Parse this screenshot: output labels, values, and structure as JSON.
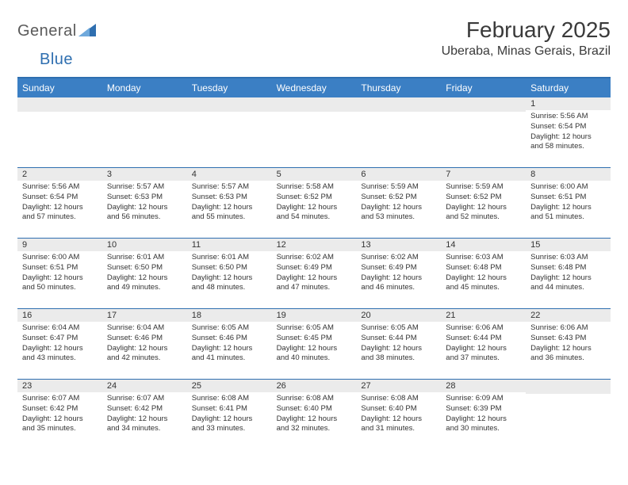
{
  "brand": {
    "word1": "General",
    "word2": "Blue"
  },
  "header": {
    "month_title": "February 2025",
    "location": "Uberaba, Minas Gerais, Brazil"
  },
  "colors": {
    "accent": "#3b7fc4",
    "rule": "#2f6fb0",
    "daynum_bg": "#ebebeb",
    "text": "#333333",
    "bg": "#ffffff"
  },
  "day_headers": [
    "Sunday",
    "Monday",
    "Tuesday",
    "Wednesday",
    "Thursday",
    "Friday",
    "Saturday"
  ],
  "weeks": [
    [
      {
        "n": "",
        "sr": "",
        "ss": "",
        "dl": ""
      },
      {
        "n": "",
        "sr": "",
        "ss": "",
        "dl": ""
      },
      {
        "n": "",
        "sr": "",
        "ss": "",
        "dl": ""
      },
      {
        "n": "",
        "sr": "",
        "ss": "",
        "dl": ""
      },
      {
        "n": "",
        "sr": "",
        "ss": "",
        "dl": ""
      },
      {
        "n": "",
        "sr": "",
        "ss": "",
        "dl": ""
      },
      {
        "n": "1",
        "sr": "Sunrise: 5:56 AM",
        "ss": "Sunset: 6:54 PM",
        "dl": "Daylight: 12 hours and 58 minutes."
      }
    ],
    [
      {
        "n": "2",
        "sr": "Sunrise: 5:56 AM",
        "ss": "Sunset: 6:54 PM",
        "dl": "Daylight: 12 hours and 57 minutes."
      },
      {
        "n": "3",
        "sr": "Sunrise: 5:57 AM",
        "ss": "Sunset: 6:53 PM",
        "dl": "Daylight: 12 hours and 56 minutes."
      },
      {
        "n": "4",
        "sr": "Sunrise: 5:57 AM",
        "ss": "Sunset: 6:53 PM",
        "dl": "Daylight: 12 hours and 55 minutes."
      },
      {
        "n": "5",
        "sr": "Sunrise: 5:58 AM",
        "ss": "Sunset: 6:52 PM",
        "dl": "Daylight: 12 hours and 54 minutes."
      },
      {
        "n": "6",
        "sr": "Sunrise: 5:59 AM",
        "ss": "Sunset: 6:52 PM",
        "dl": "Daylight: 12 hours and 53 minutes."
      },
      {
        "n": "7",
        "sr": "Sunrise: 5:59 AM",
        "ss": "Sunset: 6:52 PM",
        "dl": "Daylight: 12 hours and 52 minutes."
      },
      {
        "n": "8",
        "sr": "Sunrise: 6:00 AM",
        "ss": "Sunset: 6:51 PM",
        "dl": "Daylight: 12 hours and 51 minutes."
      }
    ],
    [
      {
        "n": "9",
        "sr": "Sunrise: 6:00 AM",
        "ss": "Sunset: 6:51 PM",
        "dl": "Daylight: 12 hours and 50 minutes."
      },
      {
        "n": "10",
        "sr": "Sunrise: 6:01 AM",
        "ss": "Sunset: 6:50 PM",
        "dl": "Daylight: 12 hours and 49 minutes."
      },
      {
        "n": "11",
        "sr": "Sunrise: 6:01 AM",
        "ss": "Sunset: 6:50 PM",
        "dl": "Daylight: 12 hours and 48 minutes."
      },
      {
        "n": "12",
        "sr": "Sunrise: 6:02 AM",
        "ss": "Sunset: 6:49 PM",
        "dl": "Daylight: 12 hours and 47 minutes."
      },
      {
        "n": "13",
        "sr": "Sunrise: 6:02 AM",
        "ss": "Sunset: 6:49 PM",
        "dl": "Daylight: 12 hours and 46 minutes."
      },
      {
        "n": "14",
        "sr": "Sunrise: 6:03 AM",
        "ss": "Sunset: 6:48 PM",
        "dl": "Daylight: 12 hours and 45 minutes."
      },
      {
        "n": "15",
        "sr": "Sunrise: 6:03 AM",
        "ss": "Sunset: 6:48 PM",
        "dl": "Daylight: 12 hours and 44 minutes."
      }
    ],
    [
      {
        "n": "16",
        "sr": "Sunrise: 6:04 AM",
        "ss": "Sunset: 6:47 PM",
        "dl": "Daylight: 12 hours and 43 minutes."
      },
      {
        "n": "17",
        "sr": "Sunrise: 6:04 AM",
        "ss": "Sunset: 6:46 PM",
        "dl": "Daylight: 12 hours and 42 minutes."
      },
      {
        "n": "18",
        "sr": "Sunrise: 6:05 AM",
        "ss": "Sunset: 6:46 PM",
        "dl": "Daylight: 12 hours and 41 minutes."
      },
      {
        "n": "19",
        "sr": "Sunrise: 6:05 AM",
        "ss": "Sunset: 6:45 PM",
        "dl": "Daylight: 12 hours and 40 minutes."
      },
      {
        "n": "20",
        "sr": "Sunrise: 6:05 AM",
        "ss": "Sunset: 6:44 PM",
        "dl": "Daylight: 12 hours and 38 minutes."
      },
      {
        "n": "21",
        "sr": "Sunrise: 6:06 AM",
        "ss": "Sunset: 6:44 PM",
        "dl": "Daylight: 12 hours and 37 minutes."
      },
      {
        "n": "22",
        "sr": "Sunrise: 6:06 AM",
        "ss": "Sunset: 6:43 PM",
        "dl": "Daylight: 12 hours and 36 minutes."
      }
    ],
    [
      {
        "n": "23",
        "sr": "Sunrise: 6:07 AM",
        "ss": "Sunset: 6:42 PM",
        "dl": "Daylight: 12 hours and 35 minutes."
      },
      {
        "n": "24",
        "sr": "Sunrise: 6:07 AM",
        "ss": "Sunset: 6:42 PM",
        "dl": "Daylight: 12 hours and 34 minutes."
      },
      {
        "n": "25",
        "sr": "Sunrise: 6:08 AM",
        "ss": "Sunset: 6:41 PM",
        "dl": "Daylight: 12 hours and 33 minutes."
      },
      {
        "n": "26",
        "sr": "Sunrise: 6:08 AM",
        "ss": "Sunset: 6:40 PM",
        "dl": "Daylight: 12 hours and 32 minutes."
      },
      {
        "n": "27",
        "sr": "Sunrise: 6:08 AM",
        "ss": "Sunset: 6:40 PM",
        "dl": "Daylight: 12 hours and 31 minutes."
      },
      {
        "n": "28",
        "sr": "Sunrise: 6:09 AM",
        "ss": "Sunset: 6:39 PM",
        "dl": "Daylight: 12 hours and 30 minutes."
      },
      {
        "n": "",
        "sr": "",
        "ss": "",
        "dl": ""
      }
    ]
  ]
}
